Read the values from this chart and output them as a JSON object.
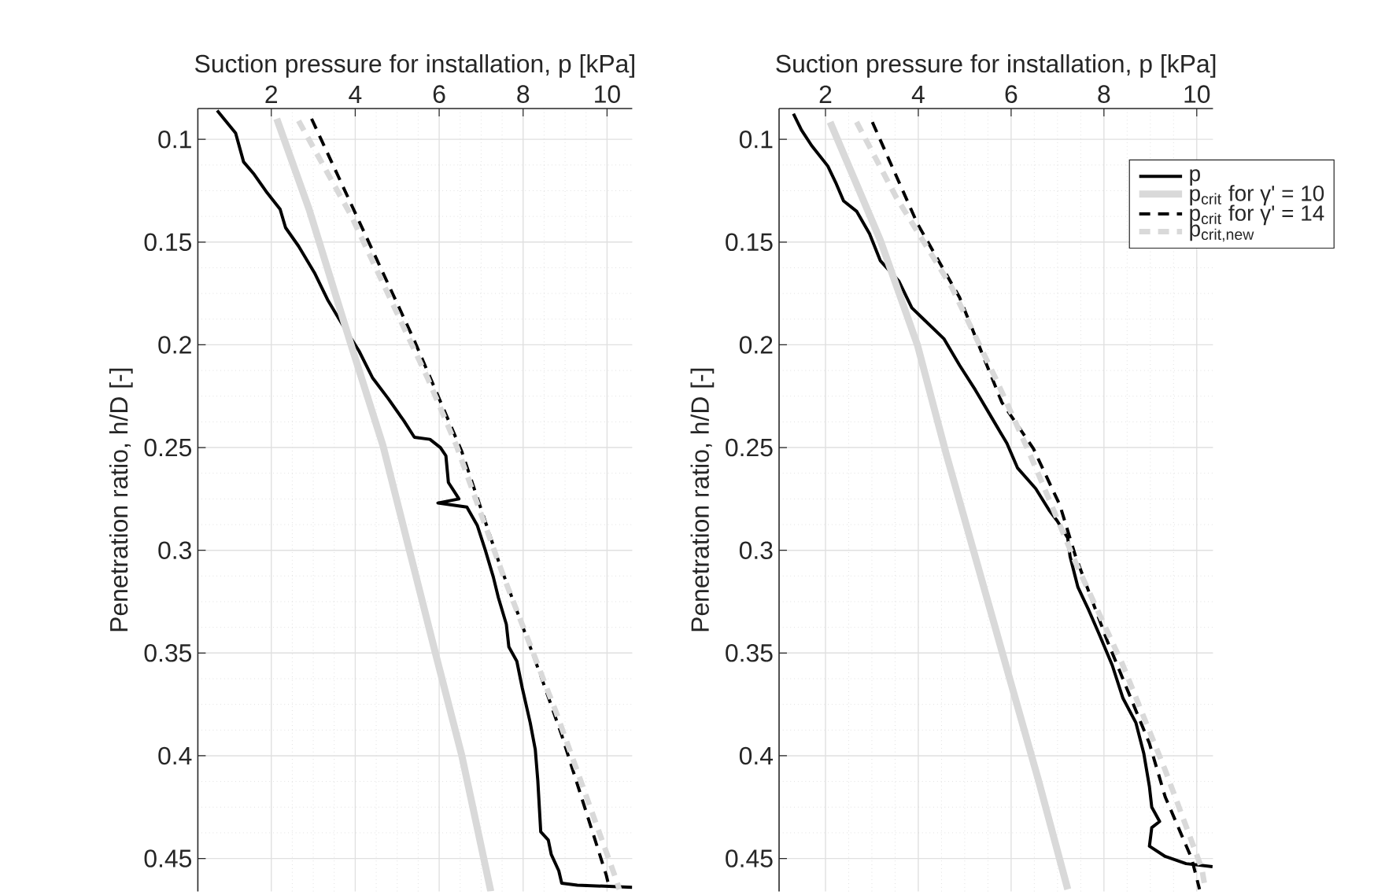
{
  "chart_data": [
    {
      "type": "line",
      "xlabel": "Suction pressure for installation, p [kPa]",
      "ylabel": "Penetration ratio, h/D [-]",
      "xlim": [
        0.25,
        10.6
      ],
      "ylim": [
        0.466,
        0.085
      ],
      "xticks": [
        2,
        4,
        6,
        8,
        10
      ],
      "yticks": [
        0.1,
        0.15,
        0.2,
        0.25,
        0.3,
        0.35,
        0.4,
        0.45
      ],
      "grid": true,
      "series": [
        {
          "color": "#000000",
          "line_style": "solid",
          "x": [
            0.71,
            1.15,
            1.34,
            1.59,
            1.9,
            2.21,
            2.34,
            2.65,
            3.03,
            3.34,
            3.72,
            4.09,
            4.41,
            4.78,
            5.16,
            5.41,
            5.78,
            6.03,
            6.16,
            6.22,
            6.41,
            6.47,
            5.97,
            6.66,
            6.91,
            7.1,
            7.29,
            7.41,
            7.6,
            7.66,
            7.85,
            7.98,
            8.17,
            8.29,
            8.35,
            8.42,
            8.6,
            8.67,
            8.85,
            8.92,
            9.29,
            10.6
          ],
          "values": [
            0.086,
            0.097,
            0.111,
            0.117,
            0.126,
            0.134,
            0.143,
            0.152,
            0.165,
            0.178,
            0.191,
            0.203,
            0.216,
            0.226,
            0.237,
            0.245,
            0.246,
            0.25,
            0.254,
            0.267,
            0.273,
            0.275,
            0.277,
            0.279,
            0.288,
            0.3,
            0.313,
            0.323,
            0.336,
            0.347,
            0.354,
            0.367,
            0.384,
            0.397,
            0.412,
            0.437,
            0.441,
            0.448,
            0.456,
            0.462,
            0.463,
            0.464
          ]
        },
        {
          "color": "#d9d9d9",
          "line_style": "solid",
          "x": [
            2.13,
            2.9,
            3.9,
            4.66,
            5.91,
            6.54,
            7.23
          ],
          "values": [
            0.09,
            0.134,
            0.2,
            0.249,
            0.35,
            0.4,
            0.466
          ]
        },
        {
          "color": "#000000",
          "line_style": "dashed",
          "x": [
            2.96,
            5.41,
            6.54,
            7.41,
            8.42,
            8.92,
            9.98,
            10.05
          ],
          "values": [
            0.09,
            0.198,
            0.252,
            0.305,
            0.361,
            0.39,
            0.458,
            0.464
          ]
        },
        {
          "color": "#d9d9d9",
          "line_style": "dashed",
          "x": [
            2.65,
            3.9,
            5.72,
            6.41,
            7.54,
            8.79,
            10.23,
            10.29
          ],
          "values": [
            0.091,
            0.137,
            0.216,
            0.249,
            0.313,
            0.379,
            0.461,
            0.465
          ]
        }
      ]
    },
    {
      "type": "line",
      "xlabel": "Suction pressure for installation, p [kPa]",
      "ylabel": "Penetration ratio, h/D [-]",
      "xlim": [
        1,
        10.35
      ],
      "ylim": [
        0.466,
        0.085
      ],
      "xticks": [
        2,
        4,
        6,
        8,
        10
      ],
      "yticks": [
        0.1,
        0.15,
        0.2,
        0.25,
        0.3,
        0.35,
        0.4,
        0.45
      ],
      "grid": true,
      "legend": "top right",
      "series": [
        {
          "name": "p",
          "color": "#000000",
          "line_style": "solid",
          "x": [
            1.31,
            1.48,
            1.7,
            2.05,
            2.22,
            2.39,
            2.67,
            2.95,
            3.18,
            3.58,
            3.86,
            4.09,
            4.55,
            4.89,
            5.23,
            5.57,
            5.91,
            6.14,
            6.53,
            6.82,
            6.99,
            7.22,
            7.27,
            7.44,
            7.67,
            7.9,
            8.18,
            8.41,
            8.69,
            8.86,
            8.98,
            9.03,
            9.2,
            9.03,
            8.98,
            9.32,
            9.77,
            10.34
          ],
          "values": [
            0.0875,
            0.0954,
            0.103,
            0.113,
            0.121,
            0.13,
            0.135,
            0.146,
            0.159,
            0.169,
            0.182,
            0.187,
            0.197,
            0.21,
            0.222,
            0.235,
            0.248,
            0.26,
            0.27,
            0.2805,
            0.2856,
            0.294,
            0.303,
            0.318,
            0.329,
            0.341,
            0.356,
            0.372,
            0.384,
            0.399,
            0.415,
            0.425,
            0.432,
            0.435,
            0.444,
            0.449,
            0.4525,
            0.454
          ]
        },
        {
          "name": "p$_{crit}$ for  γ' = 10",
          "color": "#d9d9d9",
          "line_style": "solid",
          "x": [
            2.1,
            3.18,
            3.98,
            4.6,
            5.8,
            6.59,
            7.22
          ],
          "values": [
            0.0916,
            0.149,
            0.2,
            0.253,
            0.349,
            0.412,
            0.465
          ]
        },
        {
          "name": "p$_{crit}$ for  γ' = 14",
          "color": "#000000",
          "line_style": "dashed",
          "x": [
            3.01,
            3.98,
            4.89,
            5.8,
            6.48,
            7.05,
            7.39,
            8.07,
            8.98,
            9.32,
            9.89,
            10.06
          ],
          "values": [
            0.0916,
            0.141,
            0.177,
            0.228,
            0.2505,
            0.278,
            0.303,
            0.344,
            0.394,
            0.42,
            0.45,
            0.465
          ]
        },
        {
          "name": "p$_{crit,new}$",
          "color": "#d9d9d9",
          "line_style": "dashed",
          "x": [
            2.67,
            3.52,
            4.72,
            5.68,
            6.36,
            6.59,
            7.39,
            8.41,
            9.32,
            10.11,
            10.17
          ],
          "values": [
            0.0916,
            0.128,
            0.172,
            0.217,
            0.251,
            0.263,
            0.306,
            0.356,
            0.407,
            0.455,
            0.463
          ]
        }
      ]
    }
  ]
}
